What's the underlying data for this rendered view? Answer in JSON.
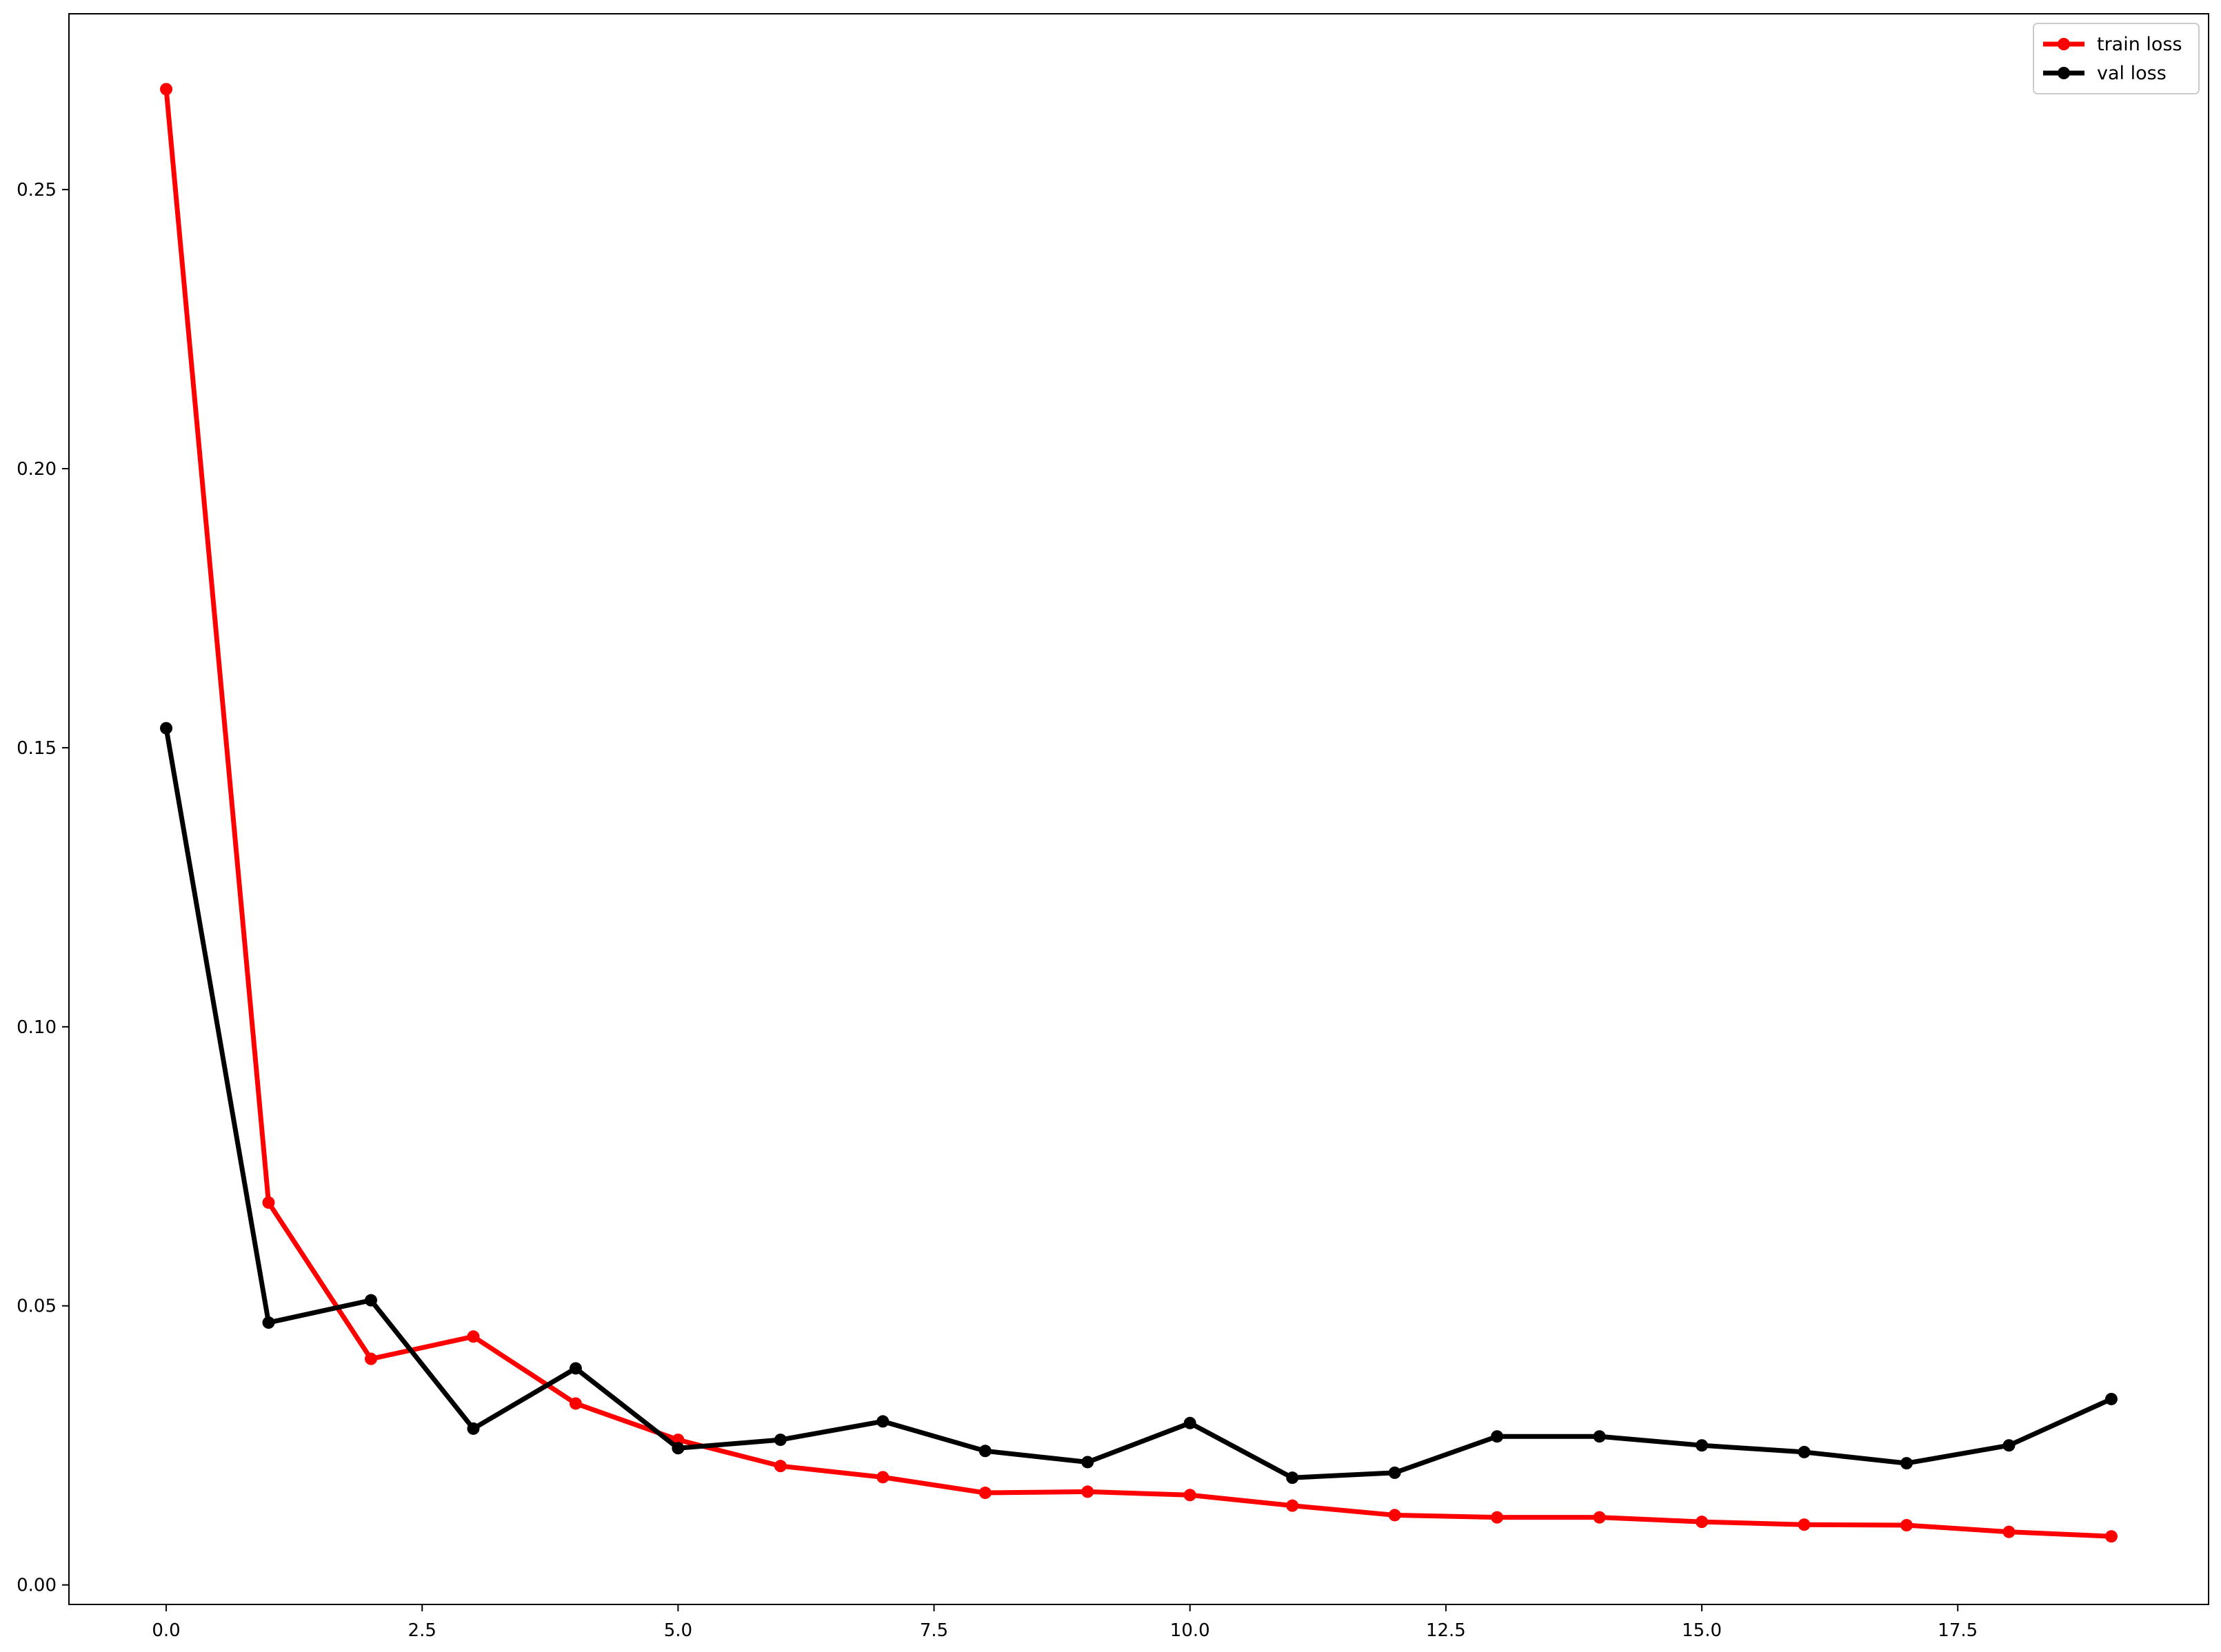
{
  "chart_data": {
    "type": "line",
    "title": "",
    "xlabel": "",
    "ylabel": "",
    "xlim": [
      -0.95,
      19.95
    ],
    "ylim": [
      -0.0035,
      0.2815
    ],
    "x_ticks": [
      0.0,
      2.5,
      5.0,
      7.5,
      10.0,
      12.5,
      15.0,
      17.5
    ],
    "x_tick_labels": [
      "0.0",
      "2.5",
      "5.0",
      "7.5",
      "10.0",
      "12.5",
      "15.0",
      "17.5"
    ],
    "y_ticks": [
      0.0,
      0.05,
      0.1,
      0.15,
      0.2,
      0.25
    ],
    "y_tick_labels": [
      "0.00",
      "0.05",
      "0.10",
      "0.15",
      "0.20",
      "0.25"
    ],
    "grid": false,
    "legend_position": "top-right",
    "x": [
      0,
      1,
      2,
      3,
      4,
      5,
      6,
      7,
      8,
      9,
      10,
      11,
      12,
      13,
      14,
      15,
      16,
      17,
      18,
      19
    ],
    "series": [
      {
        "name": "train loss",
        "color": "#ff0000",
        "values": [
          0.268,
          0.0685,
          0.0405,
          0.0445,
          0.0325,
          0.026,
          0.0213,
          0.0193,
          0.0165,
          0.0167,
          0.0161,
          0.0142,
          0.0125,
          0.0121,
          0.0121,
          0.0113,
          0.0108,
          0.0107,
          0.0095,
          0.0087
        ]
      },
      {
        "name": "val loss",
        "color": "#000000",
        "values": [
          0.1535,
          0.047,
          0.051,
          0.028,
          0.0388,
          0.0245,
          0.026,
          0.0293,
          0.024,
          0.022,
          0.029,
          0.0192,
          0.0201,
          0.0266,
          0.0266,
          0.025,
          0.0238,
          0.0218,
          0.025,
          0.0333
        ]
      }
    ]
  }
}
